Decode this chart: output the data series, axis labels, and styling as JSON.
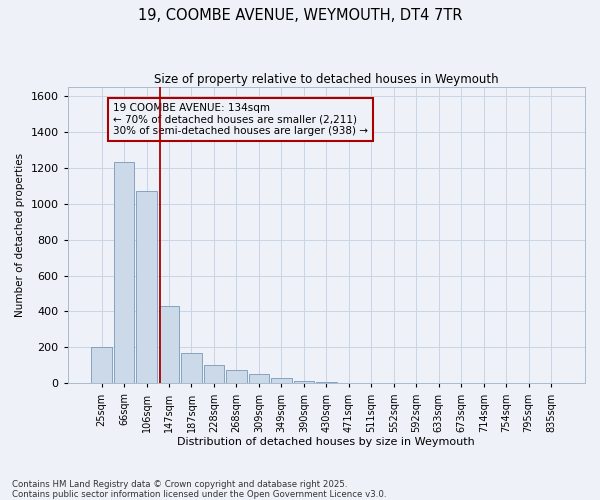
{
  "title_line1": "19, COOMBE AVENUE, WEYMOUTH, DT4 7TR",
  "title_line2": "Size of property relative to detached houses in Weymouth",
  "xlabel": "Distribution of detached houses by size in Weymouth",
  "ylabel": "Number of detached properties",
  "bar_labels": [
    "25sqm",
    "66sqm",
    "106sqm",
    "147sqm",
    "187sqm",
    "228sqm",
    "268sqm",
    "309sqm",
    "349sqm",
    "390sqm",
    "430sqm",
    "471sqm",
    "511sqm",
    "552sqm",
    "592sqm",
    "633sqm",
    "673sqm",
    "714sqm",
    "754sqm",
    "795sqm",
    "835sqm"
  ],
  "bar_values": [
    200,
    1230,
    1070,
    430,
    170,
    100,
    75,
    50,
    30,
    12,
    8,
    0,
    0,
    0,
    0,
    0,
    0,
    0,
    0,
    0,
    0
  ],
  "bar_color": "#ccd9e8",
  "bar_edge_color": "#7799bb",
  "vline_x": 2.62,
  "vline_color": "#aa0000",
  "annotation_text": "19 COOMBE AVENUE: 134sqm\n← 70% of detached houses are smaller (2,211)\n30% of semi-detached houses are larger (938) →",
  "annotation_box_color": "#aa0000",
  "ylim": [
    0,
    1650
  ],
  "yticks": [
    0,
    200,
    400,
    600,
    800,
    1000,
    1200,
    1400,
    1600
  ],
  "grid_color": "#c8d4e4",
  "background_color": "#eef2f8",
  "footnote": "Contains HM Land Registry data © Crown copyright and database right 2025.\nContains public sector information licensed under the Open Government Licence v3.0."
}
